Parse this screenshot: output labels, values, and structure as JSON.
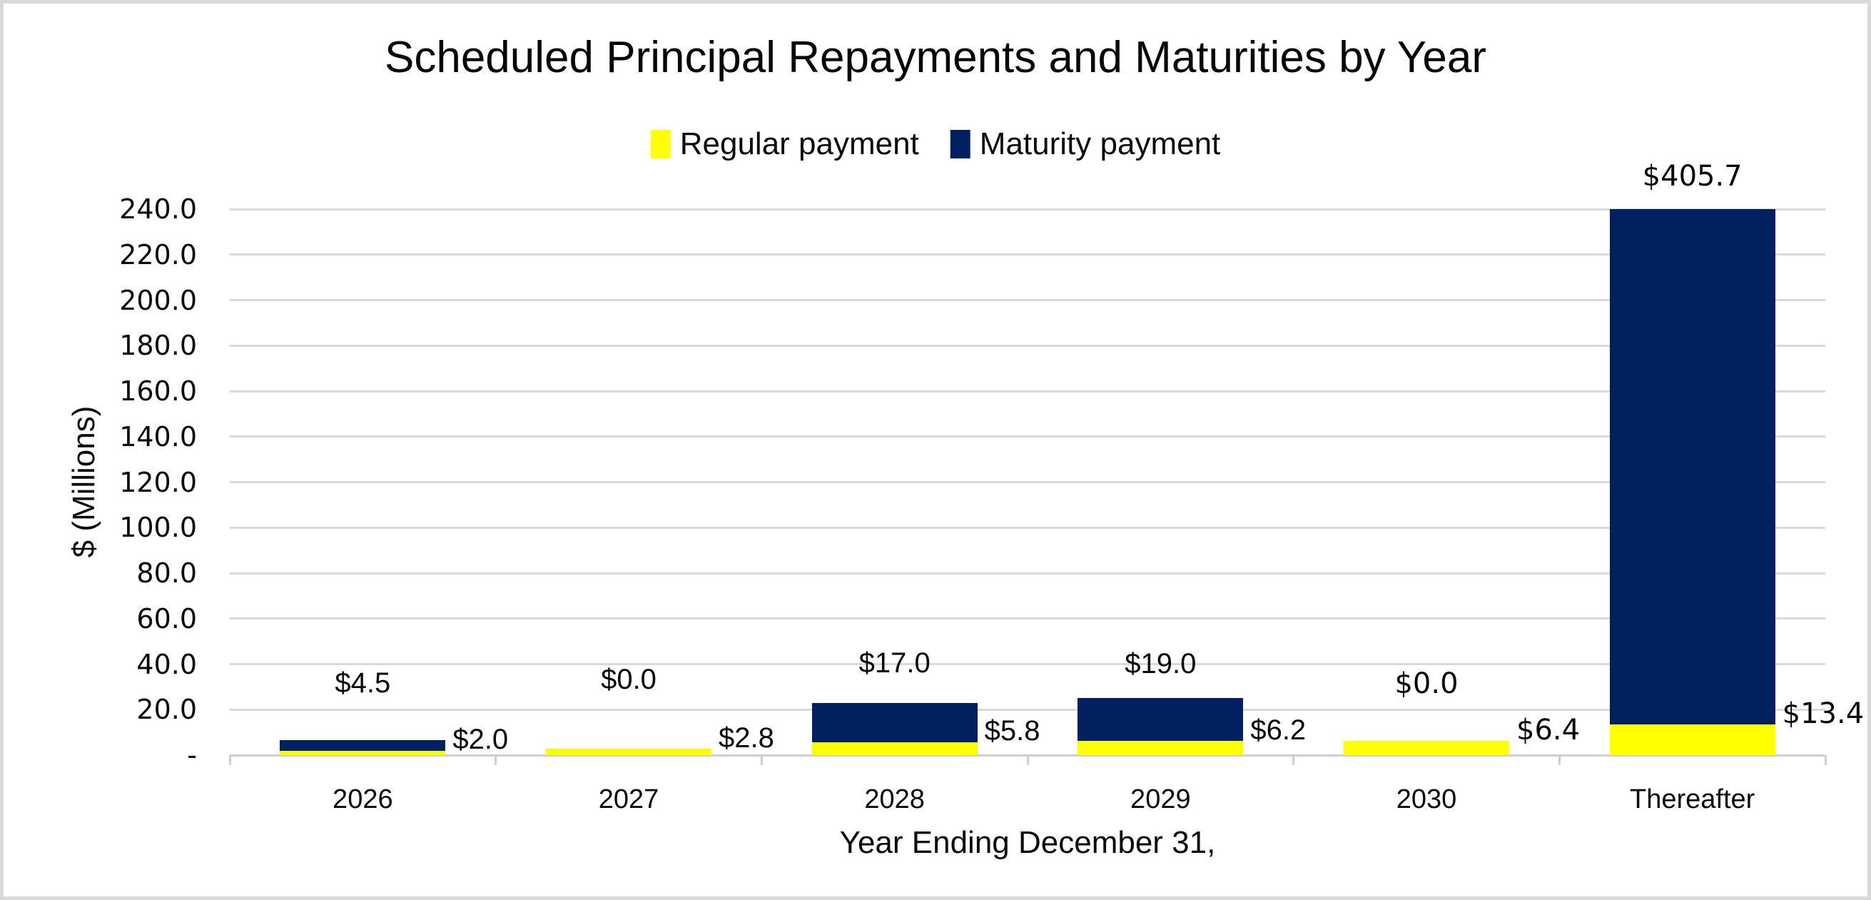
{
  "chart_data": {
    "type": "bar",
    "stacked": true,
    "title": "Scheduled Principal Repayments and Maturities by Year",
    "xlabel": "Year Ending December 31,",
    "ylabel": "$ (Millions)",
    "categories": [
      "2026",
      "2027",
      "2028",
      "2029",
      "2030",
      "Thereafter"
    ],
    "series": [
      {
        "name": "Regular payment",
        "color": "#FFFF00",
        "values": [
          2.0,
          2.8,
          5.8,
          6.2,
          6.4,
          13.4
        ],
        "labels": [
          "$2.0",
          "$2.8",
          "$5.8",
          "$6.2",
          "$6.4",
          "$13.4"
        ]
      },
      {
        "name": "Maturity payment",
        "color": "#002060",
        "values": [
          4.5,
          0.0,
          17.0,
          19.0,
          0.0,
          405.7
        ],
        "labels": [
          "$4.5",
          "$0.0",
          "$17.0",
          "$19.0",
          "$0.0",
          "$405.7"
        ]
      }
    ],
    "ylim": [
      0,
      240
    ],
    "ytick_step": 20,
    "ytick_labels": [
      "-",
      "20.0",
      "40.0",
      "60.0",
      "80.0",
      "100.0",
      "120.0",
      "140.0",
      "160.0",
      "180.0",
      "200.0",
      "220.0",
      "240.0"
    ],
    "grid": true,
    "legend_position": "top",
    "note_bar_clipped_at_ymax": "Thereafter",
    "colors": {
      "gridline": "#D9D9D9",
      "axis_line": "#CFCFCF",
      "text": "#070707",
      "background": "#FFFFFF",
      "frame_border": "#D9D9D9"
    }
  }
}
